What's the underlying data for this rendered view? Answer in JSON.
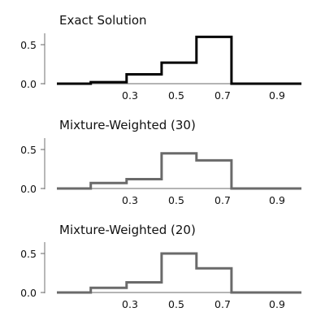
{
  "chart_data": [
    {
      "type": "step",
      "title": "Exact Solution",
      "x_ticks": [
        "0.3",
        "0.5",
        "0.7",
        "0.9"
      ],
      "x_tick_values": [
        0.3,
        0.5,
        0.7,
        0.9
      ],
      "y_ticks": [
        "0.0",
        "0.5"
      ],
      "y_tick_values": [
        0.0,
        0.5
      ],
      "xlim": [
        0.0,
        1.0
      ],
      "ylim": [
        0.0,
        0.65
      ],
      "grid": false,
      "line_color": "#000000",
      "bins": [
        {
          "x0": 0.0,
          "x1": 0.14,
          "value": 0.0
        },
        {
          "x0": 0.14,
          "x1": 0.286,
          "value": 0.02
        },
        {
          "x0": 0.286,
          "x1": 0.429,
          "value": 0.12
        },
        {
          "x0": 0.429,
          "x1": 0.571,
          "value": 0.27
        },
        {
          "x0": 0.571,
          "x1": 0.714,
          "value": 0.6
        },
        {
          "x0": 0.714,
          "x1": 1.0,
          "value": 0.0
        }
      ]
    },
    {
      "type": "step",
      "title": "Mixture-Weighted (30)",
      "x_ticks": [
        "0.3",
        "0.5",
        "0.7",
        "0.9"
      ],
      "x_tick_values": [
        0.3,
        0.5,
        0.7,
        0.9
      ],
      "y_ticks": [
        "0.0",
        "0.5"
      ],
      "y_tick_values": [
        0.0,
        0.5
      ],
      "xlim": [
        0.0,
        1.0
      ],
      "ylim": [
        0.0,
        0.65
      ],
      "grid": false,
      "line_color": "#6a6a6a",
      "bins": [
        {
          "x0": 0.0,
          "x1": 0.14,
          "value": 0.0
        },
        {
          "x0": 0.14,
          "x1": 0.286,
          "value": 0.07
        },
        {
          "x0": 0.286,
          "x1": 0.429,
          "value": 0.12
        },
        {
          "x0": 0.429,
          "x1": 0.571,
          "value": 0.45
        },
        {
          "x0": 0.571,
          "x1": 0.714,
          "value": 0.36
        },
        {
          "x0": 0.714,
          "x1": 1.0,
          "value": 0.0
        }
      ]
    },
    {
      "type": "step",
      "title": "Mixture-Weighted (20)",
      "x_ticks": [
        "0.3",
        "0.5",
        "0.7",
        "0.9"
      ],
      "x_tick_values": [
        0.3,
        0.5,
        0.7,
        0.9
      ],
      "y_ticks": [
        "0.0",
        "0.5"
      ],
      "y_tick_values": [
        0.0,
        0.5
      ],
      "xlim": [
        0.0,
        1.0
      ],
      "ylim": [
        0.0,
        0.65
      ],
      "grid": false,
      "line_color": "#6a6a6a",
      "bins": [
        {
          "x0": 0.0,
          "x1": 0.14,
          "value": 0.0
        },
        {
          "x0": 0.14,
          "x1": 0.286,
          "value": 0.06
        },
        {
          "x0": 0.286,
          "x1": 0.429,
          "value": 0.13
        },
        {
          "x0": 0.429,
          "x1": 0.571,
          "value": 0.5
        },
        {
          "x0": 0.571,
          "x1": 0.714,
          "value": 0.31
        },
        {
          "x0": 0.714,
          "x1": 1.0,
          "value": 0.0
        }
      ]
    }
  ]
}
